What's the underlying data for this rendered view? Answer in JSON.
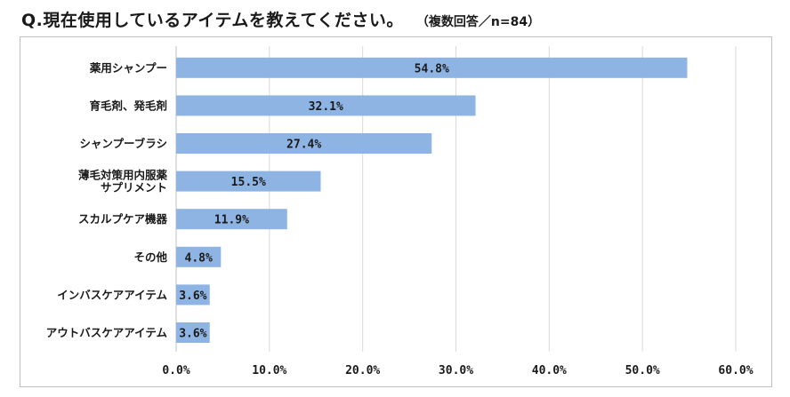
{
  "header": {
    "title": "Q.現在使用しているアイテムを教えてください。",
    "note": "（複数回答／n=84）"
  },
  "colors": {
    "bar": "#8eb4e3",
    "grid": "#d9d9d9",
    "axis": "#bfbfbf"
  },
  "chart_data": {
    "type": "bar",
    "orientation": "horizontal",
    "title": "Q.現在使用しているアイテムを教えてください。",
    "subtitle": "（複数回答／n=84）",
    "xlabel": "",
    "ylabel": "",
    "xlim": [
      0,
      60
    ],
    "grid": true,
    "categories": [
      [
        "薬用シャンプー"
      ],
      [
        "育毛剤、発毛剤"
      ],
      [
        "シャンプーブラシ"
      ],
      [
        "薄毛対策用内服薬",
        "サプリメント"
      ],
      [
        "スカルプケア機器"
      ],
      [
        "その他"
      ],
      [
        "インバスケアアイテム"
      ],
      [
        "アウトバスケアアイテム"
      ]
    ],
    "values": [
      54.8,
      32.1,
      27.4,
      15.5,
      11.9,
      4.8,
      3.6,
      3.6
    ],
    "value_labels": [
      "54.8%",
      "32.1%",
      "27.4%",
      "15.5%",
      "11.9%",
      "4.8%",
      "3.6%",
      "3.6%"
    ],
    "ticks": [
      0,
      10,
      20,
      30,
      40,
      50,
      60
    ],
    "tick_labels": [
      "0.0%",
      "10.0%",
      "20.0%",
      "30.0%",
      "40.0%",
      "50.0%",
      "60.0%"
    ]
  }
}
